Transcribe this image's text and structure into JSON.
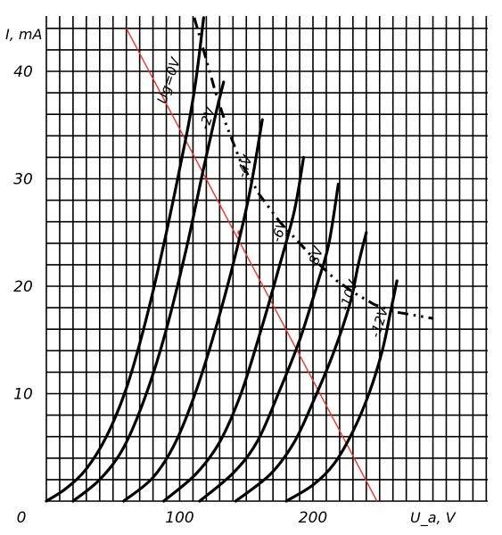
{
  "chart_data": {
    "type": "line",
    "title": "",
    "xlabel": "U_a, V",
    "ylabel": "I, mA",
    "xlim": [
      0,
      260
    ],
    "ylim": [
      0,
      45
    ],
    "grid": true,
    "x_ticks": [
      {
        "value": 0,
        "label": "0"
      },
      {
        "value": 100,
        "label": "100"
      },
      {
        "value": 200,
        "label": "200"
      }
    ],
    "y_ticks": [
      {
        "value": 10,
        "label": "10"
      },
      {
        "value": 20,
        "label": "20"
      },
      {
        "value": 30,
        "label": "30"
      },
      {
        "value": 40,
        "label": "40"
      }
    ],
    "series": [
      {
        "name": "Ug=0V",
        "label_x": 95,
        "label_y": 39,
        "points": [
          [
            0,
            0
          ],
          [
            15,
            1.2
          ],
          [
            30,
            3
          ],
          [
            45,
            6
          ],
          [
            60,
            10.5
          ],
          [
            75,
            17
          ],
          [
            90,
            25
          ],
          [
            105,
            34
          ],
          [
            112,
            39
          ],
          [
            118,
            45
          ]
        ]
      },
      {
        "name": "-2V",
        "label_x": 124,
        "label_y": 35.5,
        "points": [
          [
            20,
            0
          ],
          [
            40,
            2
          ],
          [
            58,
            5
          ],
          [
            75,
            10
          ],
          [
            90,
            16
          ],
          [
            105,
            23.5
          ],
          [
            118,
            31
          ],
          [
            127,
            36
          ],
          [
            133,
            39
          ]
        ]
      },
      {
        "name": "-4V",
        "label_x": 152,
        "label_y": 31,
        "points": [
          [
            58,
            0
          ],
          [
            80,
            2.2
          ],
          [
            97,
            5.5
          ],
          [
            113,
            10.5
          ],
          [
            128,
            16.5
          ],
          [
            142,
            23
          ],
          [
            153,
            29
          ],
          [
            162,
            35.5
          ]
        ]
      },
      {
        "name": "-6V",
        "label_x": 178,
        "label_y": 25,
        "points": [
          [
            88,
            0
          ],
          [
            112,
            2.5
          ],
          [
            130,
            5.5
          ],
          [
            146,
            10
          ],
          [
            160,
            15.5
          ],
          [
            174,
            21.5
          ],
          [
            186,
            27
          ],
          [
            193,
            32
          ]
        ]
      },
      {
        "name": "-8V",
        "label_x": 205,
        "label_y": 22.5,
        "points": [
          [
            115,
            0
          ],
          [
            140,
            2.6
          ],
          [
            158,
            5.5
          ],
          [
            174,
            10
          ],
          [
            190,
            15
          ],
          [
            204,
            20.5
          ],
          [
            212,
            24
          ],
          [
            219,
            29.5
          ]
        ]
      },
      {
        "name": "-10V",
        "label_x": 230,
        "label_y": 19,
        "points": [
          [
            142,
            0
          ],
          [
            168,
            2.5
          ],
          [
            186,
            5.5
          ],
          [
            201,
            9.5
          ],
          [
            216,
            14
          ],
          [
            228,
            18.5
          ],
          [
            234,
            22
          ],
          [
            240,
            25
          ]
        ]
      },
      {
        "name": "-12V",
        "label_x": 253,
        "label_y": 16.5,
        "points": [
          [
            180,
            0
          ],
          [
            200,
            1.5
          ],
          [
            216,
            3.5
          ],
          [
            230,
            6.5
          ],
          [
            242,
            10
          ],
          [
            252,
            14
          ],
          [
            258,
            17.5
          ],
          [
            263,
            20.5
          ]
        ]
      }
    ],
    "dissipation_curve": [
      [
        111,
        45
      ],
      [
        127,
        38
      ],
      [
        135,
        35
      ],
      [
        146,
        31.5
      ],
      [
        160,
        28.5
      ],
      [
        175,
        26
      ],
      [
        190,
        24
      ],
      [
        205,
        22
      ],
      [
        218,
        20.5
      ],
      [
        232,
        19.3
      ],
      [
        246,
        18.3
      ],
      [
        262,
        17.6
      ],
      [
        290,
        17
      ]
    ],
    "load_line": {
      "from": [
        60,
        44
      ],
      "to": [
        248,
        0
      ]
    },
    "operating_point": [
      145,
      25
    ]
  }
}
